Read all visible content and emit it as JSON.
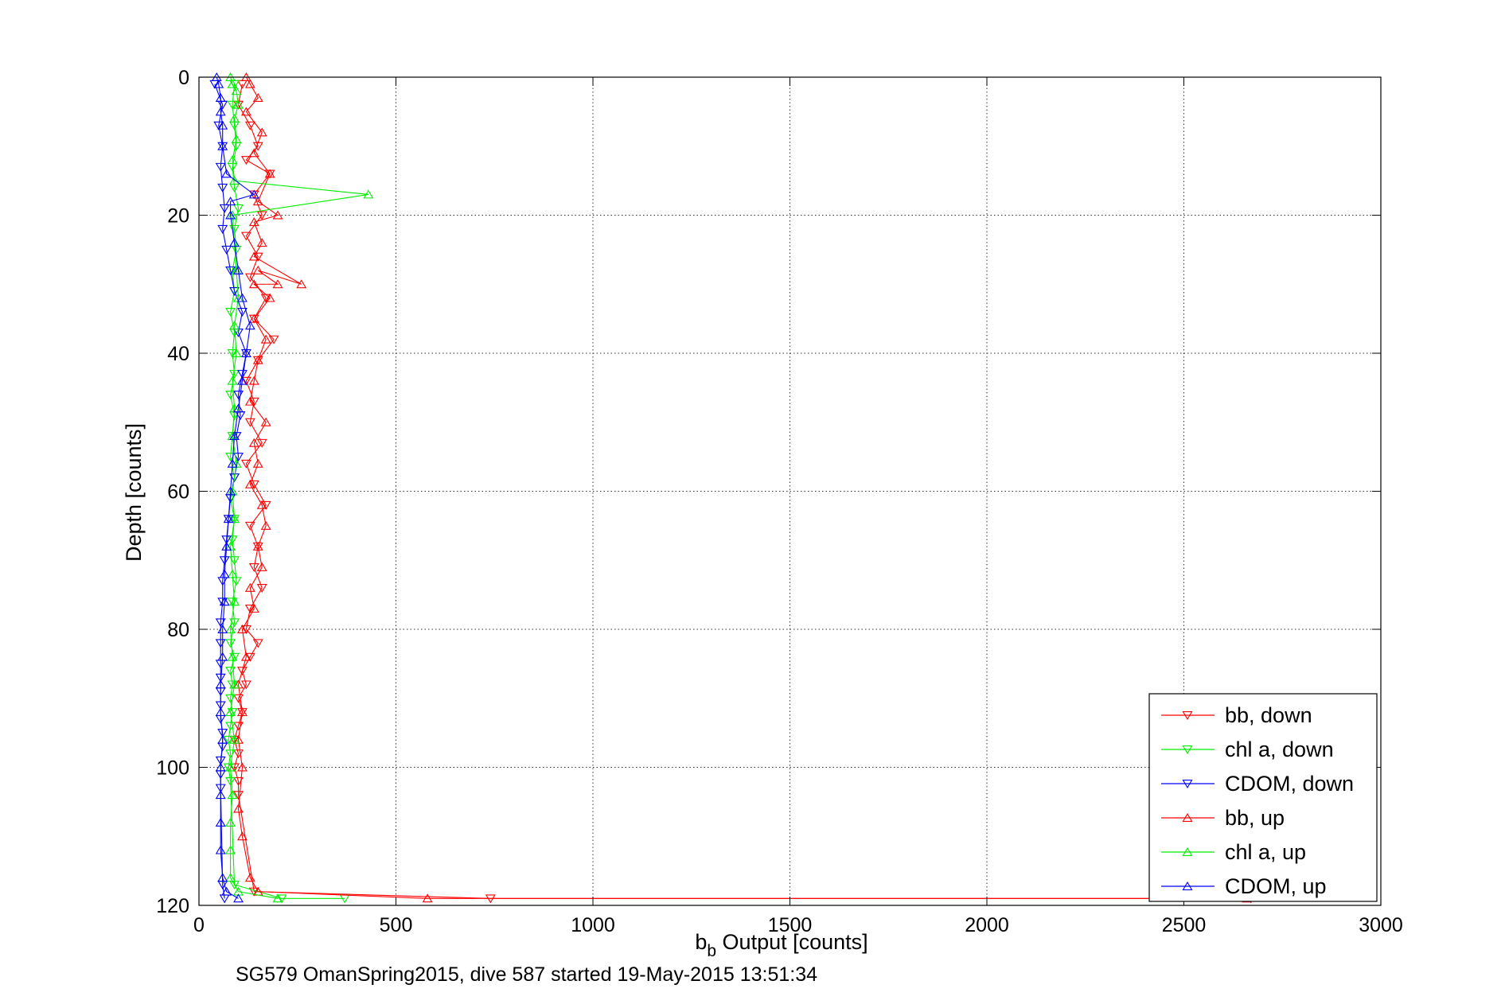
{
  "chart_data": {
    "type": "scatter",
    "xlabel": "b_b Output [counts]",
    "xlabel_main": "b",
    "xlabel_sub": "b",
    "xlabel_rest": " Output [counts]",
    "ylabel": "Depth [counts]",
    "caption": "SG579 OmanSpring2015, dive 587 started 19-May-2015 13:51:34",
    "xlim": [
      0,
      3000
    ],
    "ylim": [
      0,
      120
    ],
    "y_reversed": true,
    "grid": true,
    "legend_position": "bottom-right",
    "x_ticks": [
      0,
      500,
      1000,
      1500,
      2000,
      2500,
      3000
    ],
    "y_ticks": [
      0,
      20,
      40,
      60,
      80,
      100,
      120
    ],
    "x_tick_labels": [
      "0",
      "500",
      "1000",
      "1500",
      "2000",
      "2500",
      "3000"
    ],
    "y_tick_labels": [
      "0",
      "20",
      "40",
      "60",
      "80",
      "100",
      "120"
    ],
    "series": [
      {
        "name": "bb, down",
        "color": "#ff0000",
        "marker": "triangle-down",
        "x": [
          110,
          100,
          130,
          150,
          120,
          180,
          140,
          160,
          120,
          150,
          130,
          170,
          140,
          190,
          150,
          120,
          140,
          130,
          160,
          120,
          140,
          170,
          130,
          150,
          140,
          160,
          130,
          120,
          150,
          130,
          110,
          120,
          100,
          110,
          100,
          90,
          100,
          90,
          100,
          100,
          140,
          740,
          2670
        ],
        "y": [
          1,
          4,
          7,
          10,
          12,
          14,
          17,
          20,
          23,
          26,
          29,
          32,
          35,
          38,
          41,
          44,
          47,
          50,
          53,
          56,
          59,
          62,
          65,
          68,
          71,
          74,
          77,
          80,
          82,
          84,
          86,
          88,
          90,
          92,
          94,
          96,
          98,
          100,
          102,
          104,
          118,
          119,
          119
        ]
      },
      {
        "name": "chl a, down",
        "color": "#00ee00",
        "marker": "triangle-down",
        "x": [
          90,
          85,
          90,
          95,
          85,
          90,
          100,
          90,
          95,
          85,
          90,
          80,
          90,
          85,
          90,
          80,
          90,
          85,
          80,
          90,
          80,
          90,
          85,
          90,
          95,
          85,
          90,
          80,
          90,
          80,
          85,
          80,
          85,
          80,
          75,
          80,
          75,
          80,
          90,
          210,
          370
        ],
        "y": [
          1,
          4,
          7,
          10,
          13,
          16,
          19,
          22,
          25,
          28,
          31,
          34,
          37,
          40,
          43,
          46,
          49,
          52,
          55,
          58,
          61,
          64,
          67,
          70,
          73,
          76,
          79,
          82,
          84,
          86,
          88,
          90,
          92,
          94,
          96,
          98,
          100,
          102,
          117,
          119,
          119
        ]
      },
      {
        "name": "CDOM, down",
        "color": "#0000ff",
        "marker": "triangle-down",
        "x": [
          40,
          60,
          50,
          60,
          55,
          60,
          65,
          60,
          70,
          80,
          90,
          110,
          100,
          120,
          110,
          100,
          105,
          95,
          100,
          90,
          80,
          75,
          70,
          65,
          60,
          60,
          55,
          55,
          55,
          55,
          55,
          55,
          55,
          60,
          60,
          55,
          55,
          55,
          60,
          65
        ],
        "y": [
          1,
          4,
          7,
          10,
          13,
          16,
          19,
          22,
          25,
          28,
          31,
          34,
          37,
          40,
          43,
          46,
          49,
          52,
          55,
          58,
          61,
          64,
          67,
          70,
          73,
          76,
          79,
          82,
          85,
          87,
          89,
          91,
          93,
          95,
          97,
          99,
          101,
          103,
          117,
          119
        ]
      },
      {
        "name": "bb, up",
        "color": "#ff0000",
        "marker": "triangle-up",
        "x": [
          2660,
          580,
          150,
          130,
          110,
          100,
          110,
          100,
          110,
          100,
          120,
          110,
          140,
          130,
          160,
          150,
          170,
          160,
          130,
          150,
          140,
          170,
          130,
          140,
          150,
          170,
          140,
          180,
          140,
          200,
          150,
          260,
          140,
          160,
          140,
          200,
          150,
          180,
          140,
          160,
          120,
          150,
          130,
          120
        ],
        "y": [
          119,
          119,
          118,
          116,
          110,
          106,
          100,
          96,
          92,
          88,
          84,
          80,
          77,
          74,
          71,
          68,
          65,
          62,
          59,
          56,
          53,
          50,
          47,
          44,
          41,
          38,
          35,
          32,
          30,
          30,
          28,
          30,
          26,
          24,
          21,
          20,
          18,
          14,
          11,
          8,
          5,
          3,
          1,
          0
        ]
      },
      {
        "name": "chl a, up",
        "color": "#00ee00",
        "marker": "triangle-up",
        "x": [
          200,
          100,
          80,
          80,
          80,
          85,
          80,
          90,
          80,
          90,
          85,
          80,
          90,
          85,
          80,
          90,
          85,
          95,
          85,
          90,
          85,
          95,
          90,
          100,
          95,
          90,
          85,
          430,
          90,
          85,
          95,
          90,
          100,
          95,
          85,
          80
        ],
        "y": [
          119,
          118,
          116,
          112,
          108,
          104,
          100,
          96,
          92,
          88,
          84,
          80,
          76,
          72,
          68,
          64,
          60,
          56,
          52,
          48,
          44,
          40,
          36,
          32,
          28,
          24,
          20,
          17,
          15,
          12,
          9,
          6,
          4,
          2,
          1,
          0
        ]
      },
      {
        "name": "CDOM, up",
        "color": "#0000ff",
        "marker": "triangle-up",
        "x": [
          100,
          70,
          60,
          55,
          55,
          55,
          55,
          60,
          55,
          55,
          60,
          60,
          65,
          65,
          70,
          75,
          80,
          85,
          90,
          100,
          110,
          120,
          130,
          110,
          100,
          90,
          80,
          80,
          140,
          70,
          60,
          60,
          55,
          55,
          50,
          45
        ],
        "y": [
          119,
          118,
          116,
          112,
          108,
          104,
          100,
          96,
          92,
          88,
          84,
          80,
          76,
          72,
          68,
          64,
          60,
          56,
          52,
          48,
          44,
          40,
          36,
          32,
          28,
          24,
          20,
          18,
          17,
          14,
          10,
          7,
          5,
          3,
          1,
          0
        ]
      }
    ]
  }
}
